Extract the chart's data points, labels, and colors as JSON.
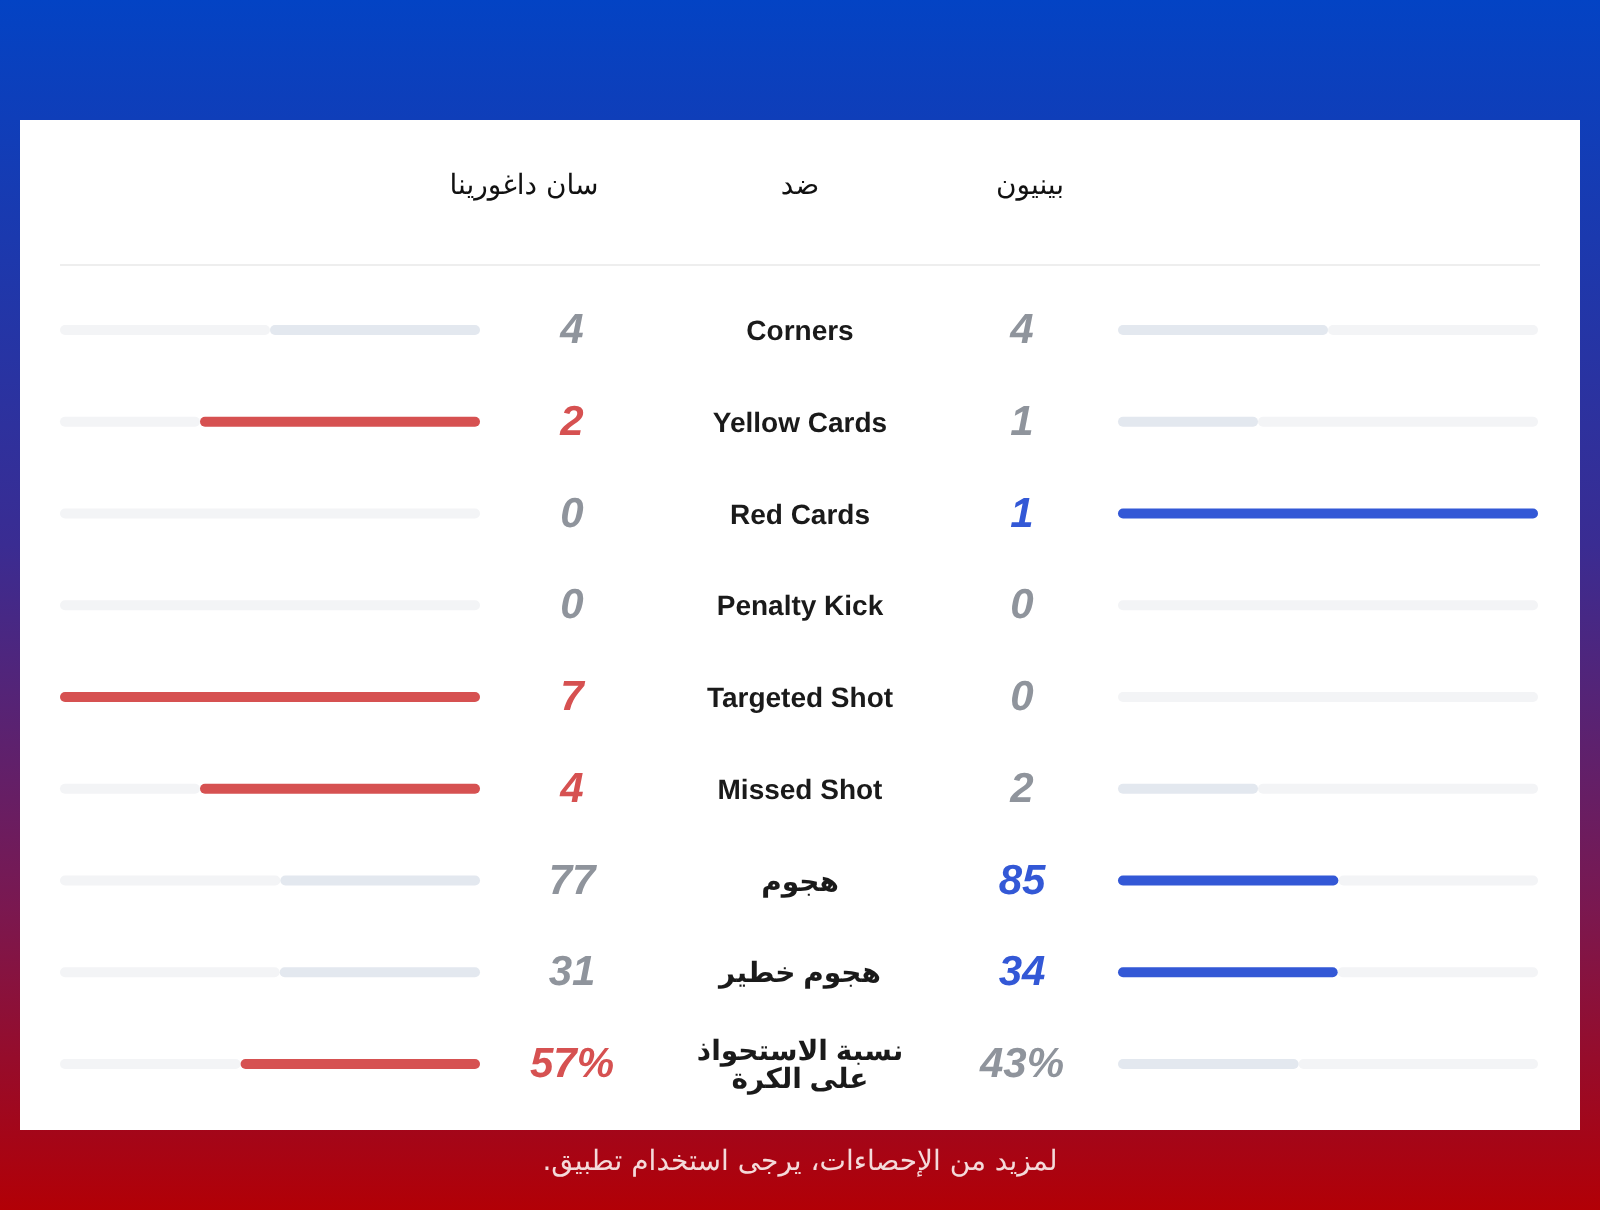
{
  "chart_data": {
    "type": "other",
    "categories": [
      "Corners",
      "Yellow Cards",
      "Red Cards",
      "Penalty Kick",
      "Targeted Shot",
      "Missed Shot",
      "هجوم",
      "هجوم خطير",
      "نسبة الاستحواذ على الكرة"
    ],
    "series": [
      {
        "name": "سان داغورينا",
        "colors": [
          "#e3e8ef",
          "#d65151",
          "#e3e8ef",
          "#e3e8ef",
          "#d65151",
          "#d65151",
          "#e3e8ef",
          "#e3e8ef",
          "#d65151"
        ],
        "values": [
          4,
          2,
          0,
          0,
          7,
          4,
          77,
          31,
          57
        ],
        "value_labels": [
          "4",
          "2",
          "0",
          "0",
          "7",
          "4",
          "77",
          "31",
          "57%"
        ]
      },
      {
        "name": "بينيون",
        "colors": [
          "#e3e8ef",
          "#e3e8ef",
          "#3358d6",
          "#e3e8ef",
          "#e3e8ef",
          "#e3e8ef",
          "#3358d6",
          "#3358d6",
          "#e3e8ef"
        ],
        "values": [
          4,
          1,
          1,
          0,
          0,
          2,
          85,
          34,
          43
        ],
        "value_labels": [
          "4",
          "1",
          "1",
          "0",
          "0",
          "2",
          "85",
          "34",
          "43%"
        ]
      }
    ],
    "annotations": [
      "ضد",
      "لمزيد من الإحصاءات، يرجى استخدام تطبيق."
    ]
  }
}
